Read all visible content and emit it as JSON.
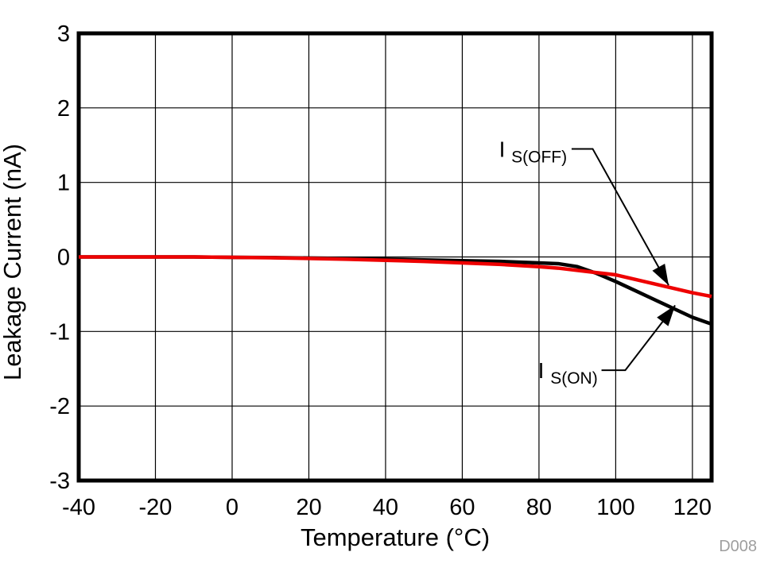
{
  "figure": {
    "id_label": "D008",
    "background": "#ffffff"
  },
  "chart_data": {
    "type": "line",
    "title": "",
    "xlabel": "Temperature (°C)",
    "ylabel": "Leakage Current (nA)",
    "xlim": [
      -40,
      125
    ],
    "ylim": [
      -3,
      3
    ],
    "x_ticks": [
      -40,
      -20,
      0,
      20,
      40,
      60,
      80,
      100,
      120
    ],
    "y_ticks": [
      3,
      2,
      1,
      0,
      -1,
      -2,
      -3
    ],
    "grid": true,
    "legend_position": "none",
    "axis_color": "#000000",
    "grid_color": "#000000",
    "series": [
      {
        "name": "IS(ON)",
        "color": "#000000",
        "x": [
          -40,
          -30,
          -20,
          -10,
          0,
          10,
          20,
          30,
          40,
          50,
          60,
          70,
          80,
          85,
          90,
          95,
          100,
          105,
          110,
          115,
          120,
          125
        ],
        "y": [
          0,
          0,
          0,
          0,
          -0.005,
          -0.008,
          -0.015,
          -0.022,
          -0.03,
          -0.04,
          -0.05,
          -0.06,
          -0.08,
          -0.09,
          -0.13,
          -0.22,
          -0.33,
          -0.45,
          -0.57,
          -0.69,
          -0.81,
          -0.9
        ]
      },
      {
        "name": "IS(OFF)",
        "color": "#ee0000",
        "x": [
          -40,
          -30,
          -20,
          -10,
          0,
          10,
          20,
          30,
          40,
          50,
          60,
          70,
          80,
          85,
          90,
          95,
          100,
          105,
          110,
          115,
          120,
          125
        ],
        "y": [
          0,
          0,
          0,
          0,
          -0.005,
          -0.01,
          -0.02,
          -0.03,
          -0.045,
          -0.06,
          -0.08,
          -0.1,
          -0.13,
          -0.15,
          -0.18,
          -0.21,
          -0.24,
          -0.3,
          -0.36,
          -0.42,
          -0.48,
          -0.53
        ]
      }
    ],
    "annotations": [
      {
        "label_main": "I",
        "label_sub": "S(OFF)",
        "text_anchor": [
          87.3,
          1.45
        ],
        "leader": [
          [
            88.5,
            1.45
          ],
          [
            94,
            1.45
          ],
          [
            113.8,
            -0.38
          ]
        ]
      },
      {
        "label_main": "I",
        "label_sub": "S(ON)",
        "text_anchor": [
          95.3,
          -1.52
        ],
        "leader": [
          [
            96.3,
            -1.52
          ],
          [
            102.5,
            -1.52
          ],
          [
            115.5,
            -0.65
          ]
        ]
      }
    ]
  }
}
